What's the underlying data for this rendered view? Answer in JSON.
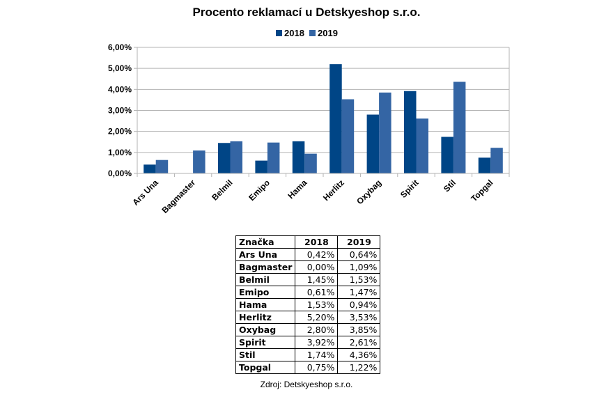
{
  "chart_data": {
    "type": "bar",
    "title": "Procento reklamací u Detskyeshop s.r.o.",
    "categories": [
      "Ars Una",
      "Bagmaster",
      "Belmil",
      "Emipo",
      "Hama",
      "Herlitz",
      "Oxybag",
      "Spirit",
      "Stil",
      "Topgal"
    ],
    "series": [
      {
        "name": "2018",
        "color": "#004586",
        "values": [
          0.42,
          0.0,
          1.45,
          0.61,
          1.53,
          5.2,
          2.8,
          3.92,
          1.74,
          0.75
        ]
      },
      {
        "name": "2019",
        "color": "#3465a4",
        "values": [
          0.64,
          1.09,
          1.53,
          1.47,
          0.94,
          3.53,
          3.85,
          2.61,
          4.36,
          1.22
        ]
      }
    ],
    "ylim": [
      0,
      6
    ],
    "yticks": [
      0,
      1,
      2,
      3,
      4,
      5,
      6
    ],
    "ytick_labels": [
      "0,00%",
      "1,00%",
      "2,00%",
      "3,00%",
      "4,00%",
      "5,00%",
      "6,00%"
    ],
    "category_labels": [
      "Ars Una",
      "Bagmaster",
      "Belmil",
      "Emipo",
      "Hama",
      "Herlitz",
      "Oxybag",
      "Spirit",
      "Stil",
      "Topgal"
    ],
    "xlabel": "",
    "ylabel": "",
    "grid": true,
    "legend_position": "top"
  },
  "table": {
    "headers": [
      "Značka",
      "2018",
      "2019"
    ],
    "rows": [
      [
        "Ars Una",
        "0,42%",
        "0,64%"
      ],
      [
        "Bagmaster",
        "0,00%",
        "1,09%"
      ],
      [
        "Belmil",
        "1,45%",
        "1,53%"
      ],
      [
        "Emipo",
        "0,61%",
        "1,47%"
      ],
      [
        "Hama",
        "1,53%",
        "0,94%"
      ],
      [
        "Herlitz",
        "5,20%",
        "3,53%"
      ],
      [
        "Oxybag",
        "2,80%",
        "3,85%"
      ],
      [
        "Spirit",
        "3,92%",
        "2,61%"
      ],
      [
        "Stil",
        "1,74%",
        "4,36%"
      ],
      [
        "Topgal",
        "0,75%",
        "1,22%"
      ]
    ]
  },
  "source": "Zdroj: Detskyeshop s.r.o."
}
